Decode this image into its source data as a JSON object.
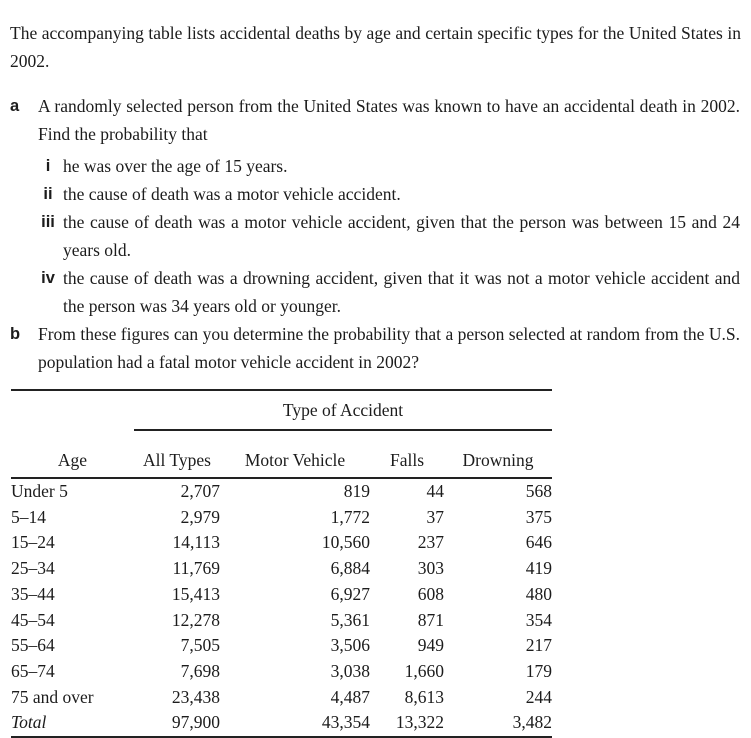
{
  "document": {
    "intro": "The accompanying table lists accidental deaths by age and certain specific types for the United States in 2002.",
    "part_a": {
      "marker": "a",
      "text": "A randomly selected person from the United States was known to have an accidental death in 2002. Find the probability that",
      "items": [
        {
          "marker": "i",
          "text": "he was over the age of 15 years."
        },
        {
          "marker": "ii",
          "text": "the cause of death was a motor vehicle accident."
        },
        {
          "marker": "iii",
          "text": "the cause of death was a motor vehicle accident, given that the person was between 15 and 24 years old."
        },
        {
          "marker": "iv",
          "text": "the cause of death was a drowning accident, given that it was not a motor vehicle accident and the person was 34 years old or younger."
        }
      ]
    },
    "part_b": {
      "marker": "b",
      "text": "From these figures can you determine the probability that a person selected at random from the U.S. population had a fatal motor vehicle accident in 2002?"
    }
  },
  "table": {
    "group_header": "Type of Accident",
    "columns": [
      "Age",
      "All Types",
      "Motor Vehicle",
      "Falls",
      "Drowning"
    ],
    "rows": [
      [
        "Under 5",
        "2,707",
        "819",
        "44",
        "568"
      ],
      [
        "5–14",
        "2,979",
        "1,772",
        "37",
        "375"
      ],
      [
        "15–24",
        "14,113",
        "10,560",
        "237",
        "646"
      ],
      [
        "25–34",
        "11,769",
        "6,884",
        "303",
        "419"
      ],
      [
        "35–44",
        "15,413",
        "6,927",
        "608",
        "480"
      ],
      [
        "45–54",
        "12,278",
        "5,361",
        "871",
        "354"
      ],
      [
        "55–64",
        "7,505",
        "3,506",
        "949",
        "217"
      ],
      [
        "65–74",
        "7,698",
        "3,038",
        "1,660",
        "179"
      ],
      [
        "75 and over",
        "23,438",
        "4,487",
        "8,613",
        "244"
      ],
      [
        "Total",
        "97,900",
        "43,354",
        "13,322",
        "3,482"
      ]
    ]
  },
  "colors": {
    "text": "#1c1c1c",
    "rule": "#222222",
    "background": "#ffffff"
  }
}
